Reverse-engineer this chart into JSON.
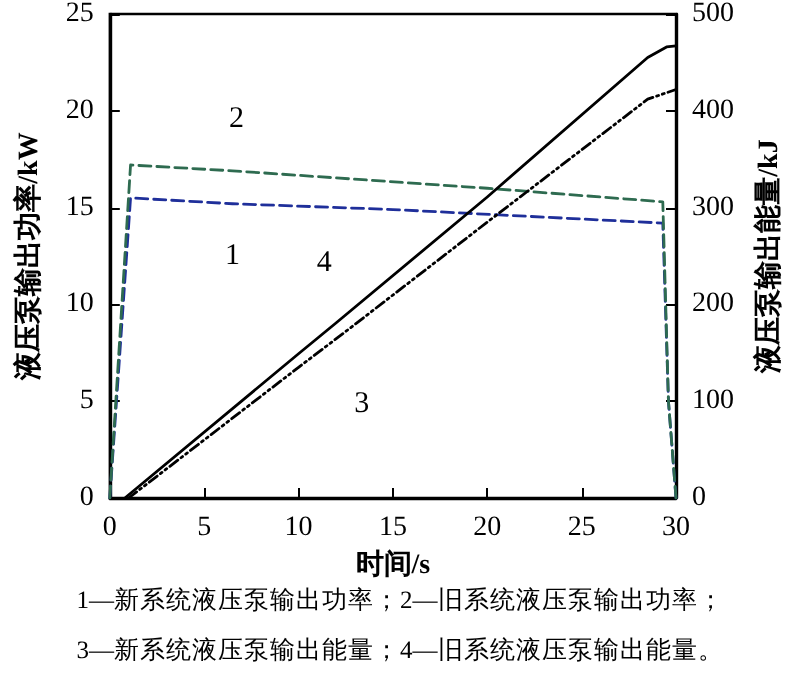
{
  "chart_data": {
    "type": "line",
    "xlabel": "时间/s",
    "ylabel": "液压泵输出功率/kW",
    "y2label": "液压泵输出能量/kJ",
    "xlim": [
      0,
      30
    ],
    "xticks": [
      0,
      5,
      10,
      15,
      20,
      25,
      30
    ],
    "ylim": [
      0,
      25
    ],
    "yticks": [
      0,
      5,
      10,
      15,
      20,
      25
    ],
    "y2lim": [
      0,
      500
    ],
    "y2ticks": [
      0,
      100,
      200,
      300,
      400,
      500
    ],
    "grid": false,
    "marker": "none",
    "series": [
      {
        "name": "1",
        "color": "#1f2f9a",
        "line_style": "dashed",
        "x": [
          0,
          1.1,
          6.5,
          15,
          29.3,
          29.6,
          30
        ],
        "values": [
          0,
          15.5,
          15.2,
          14.9,
          14.2,
          5,
          0
        ]
      },
      {
        "name": "2",
        "color": "#2e6b50",
        "line_style": "dashed",
        "x": [
          0,
          1.1,
          6.5,
          20,
          29.3,
          29.6,
          30
        ],
        "values": [
          0,
          17.2,
          16.9,
          16.0,
          15.3,
          5,
          0
        ]
      },
      {
        "name": "3",
        "color": "#000000",
        "line_style": "dotted",
        "axis": "y2",
        "x": [
          1,
          10,
          12.5,
          20,
          28.5,
          30
        ],
        "values": [
          0,
          135,
          172,
          285,
          412,
          422
        ]
      },
      {
        "name": "4",
        "color": "#000000",
        "line_style": "solid",
        "axis": "y2",
        "x": [
          0.8,
          10,
          12,
          20,
          28.5,
          29.5,
          30
        ],
        "values": [
          0,
          149,
          181,
          311,
          455,
          466,
          467
        ]
      }
    ],
    "annotations": [
      "1—新系统液压泵输出功率；2—旧系统液压泵输出功率；",
      "3—新系统液压泵输出能量；4—旧系统液压泵输出能量。"
    ]
  }
}
